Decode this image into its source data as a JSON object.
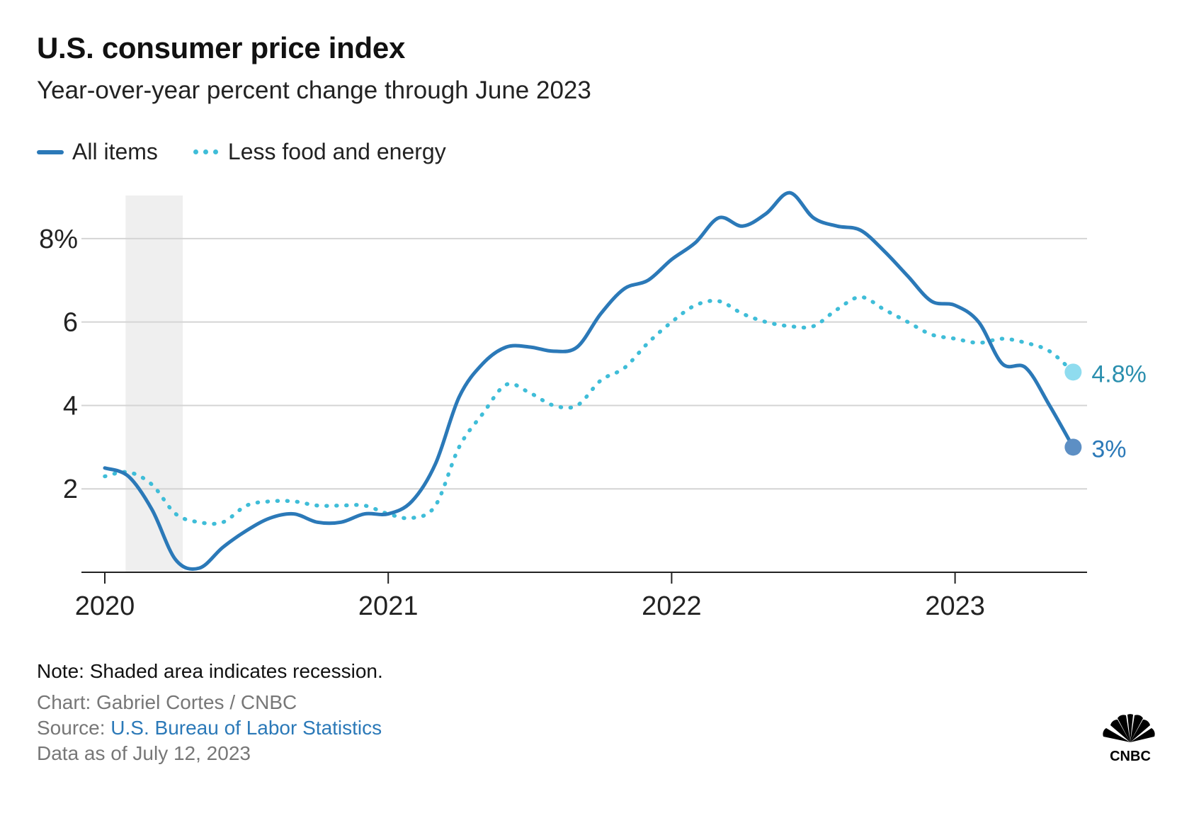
{
  "header": {
    "title": "U.S. consumer price index",
    "subtitle": "Year-over-year percent change through June 2023"
  },
  "legend": [
    {
      "label": "All items",
      "style": "solid",
      "color": "#2b79b8"
    },
    {
      "label": "Less food and energy",
      "style": "dotted",
      "color": "#3fbdd8"
    }
  ],
  "footer": {
    "note": "Note: Shaded area indicates recession.",
    "credit": "Chart: Gabriel Cortes / CNBC",
    "source_prefix": "Source: ",
    "source_link": "U.S. Bureau of Labor Statistics",
    "as_of": "Data as of July 12, 2023",
    "logo_text": "CNBC"
  },
  "chart_data": {
    "type": "line",
    "title": "U.S. consumer price index",
    "subtitle": "Year-over-year percent change through June 2023",
    "xlabel": "",
    "ylabel": "",
    "ylim": [
      0,
      9
    ],
    "x_ticks": [
      "2020",
      "2021",
      "2022",
      "2023"
    ],
    "y_ticks": [
      {
        "value": 2,
        "label": "2"
      },
      {
        "value": 4,
        "label": "4"
      },
      {
        "value": 6,
        "label": "6"
      },
      {
        "value": 8,
        "label": "8%"
      }
    ],
    "grid": "horizontal",
    "legend_position": "top-left",
    "recession": {
      "start": "2020-02",
      "end": "2020-04"
    },
    "x": [
      "2020-01",
      "2020-02",
      "2020-03",
      "2020-04",
      "2020-05",
      "2020-06",
      "2020-07",
      "2020-08",
      "2020-09",
      "2020-10",
      "2020-11",
      "2020-12",
      "2021-01",
      "2021-02",
      "2021-03",
      "2021-04",
      "2021-05",
      "2021-06",
      "2021-07",
      "2021-08",
      "2021-09",
      "2021-10",
      "2021-11",
      "2021-12",
      "2022-01",
      "2022-02",
      "2022-03",
      "2022-04",
      "2022-05",
      "2022-06",
      "2022-07",
      "2022-08",
      "2022-09",
      "2022-10",
      "2022-11",
      "2022-12",
      "2023-01",
      "2023-02",
      "2023-03",
      "2023-04",
      "2023-05",
      "2023-06"
    ],
    "series": [
      {
        "name": "All items",
        "color": "#2b79b8",
        "values": [
          2.5,
          2.3,
          1.5,
          0.3,
          0.1,
          0.6,
          1.0,
          1.3,
          1.4,
          1.2,
          1.2,
          1.4,
          1.4,
          1.7,
          2.6,
          4.2,
          5.0,
          5.4,
          5.4,
          5.3,
          5.4,
          6.2,
          6.8,
          7.0,
          7.5,
          7.9,
          8.5,
          8.3,
          8.6,
          9.1,
          8.5,
          8.3,
          8.2,
          7.7,
          7.1,
          6.5,
          6.4,
          6.0,
          5.0,
          4.9,
          4.0,
          3.0
        ],
        "end_label": "3%"
      },
      {
        "name": "Less food and energy",
        "color": "#3fbdd8",
        "values": [
          2.3,
          2.4,
          2.1,
          1.4,
          1.2,
          1.2,
          1.6,
          1.7,
          1.7,
          1.6,
          1.6,
          1.6,
          1.4,
          1.3,
          1.6,
          3.0,
          3.8,
          4.5,
          4.3,
          4.0,
          4.0,
          4.6,
          4.9,
          5.5,
          6.0,
          6.4,
          6.5,
          6.2,
          6.0,
          5.9,
          5.9,
          6.3,
          6.6,
          6.3,
          6.0,
          5.7,
          5.6,
          5.5,
          5.6,
          5.5,
          5.3,
          4.8
        ],
        "end_label": "4.8%"
      }
    ]
  }
}
